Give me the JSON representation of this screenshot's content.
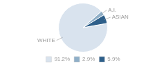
{
  "chart_data": {
    "type": "pie",
    "categories": [
      "WHITE",
      "A.I.",
      "ASIAN"
    ],
    "values": [
      91.2,
      2.9,
      5.9
    ],
    "value_labels": [
      "91.2%",
      "2.9%",
      "5.9%"
    ],
    "colors": [
      "#d9e3ee",
      "#8fafc8",
      "#2e5f8a"
    ],
    "legend": "bottom"
  }
}
